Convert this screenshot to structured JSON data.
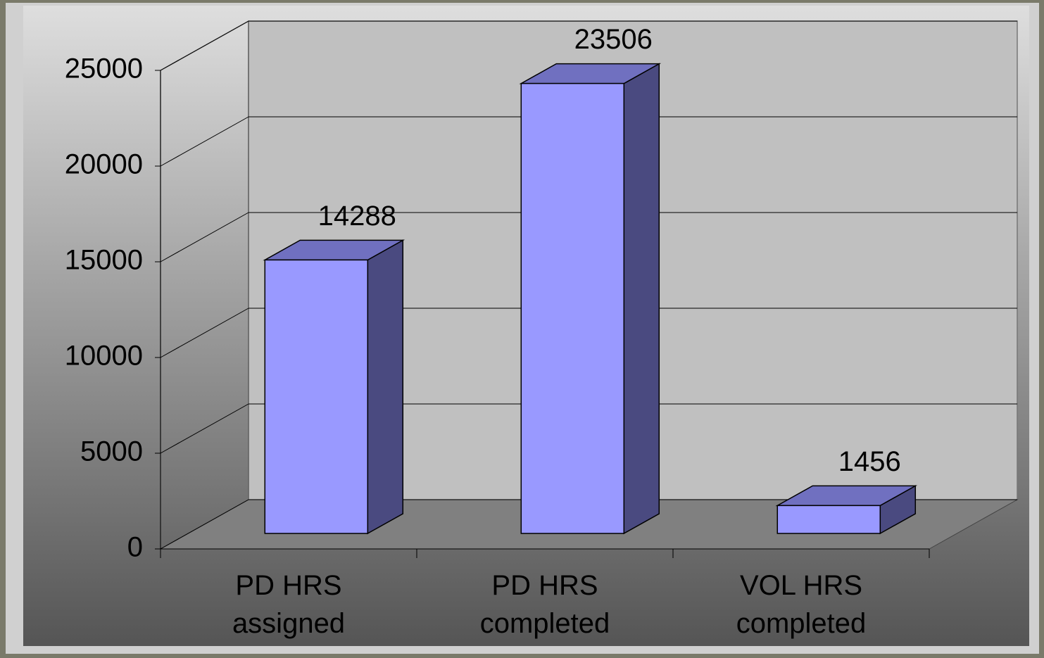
{
  "chart_data": {
    "type": "bar3d",
    "categories": [
      "PD HRS assigned",
      "PD HRS completed",
      "VOL HRS completed"
    ],
    "values": [
      14288,
      23506,
      1456
    ],
    "color": "#9999ff",
    "ylim": [
      0,
      25000
    ],
    "yticks": [
      0,
      5000,
      10000,
      15000,
      20000,
      25000
    ],
    "grid": true
  }
}
